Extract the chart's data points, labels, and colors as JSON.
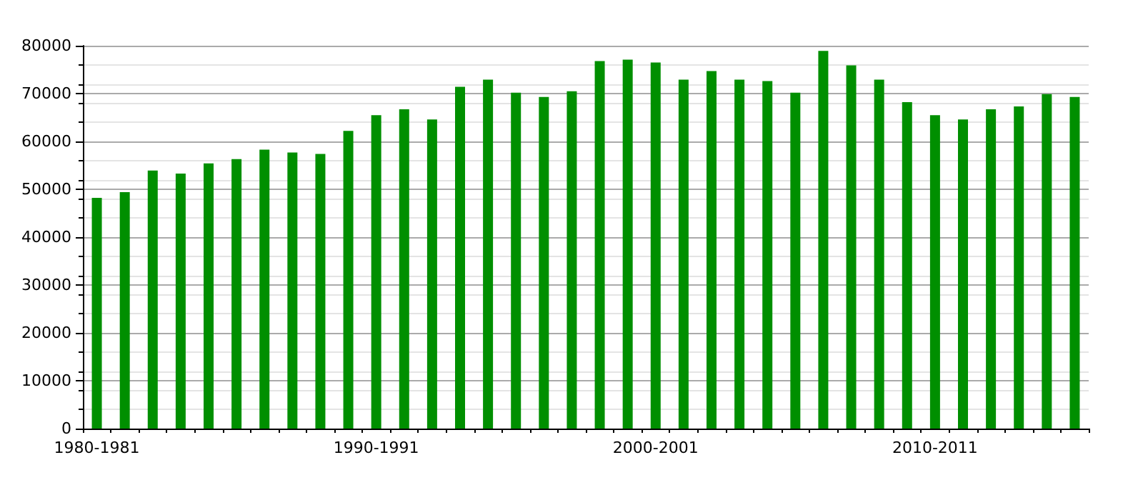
{
  "chart_data": {
    "type": "bar",
    "categories": [
      "1980-1981",
      null,
      null,
      null,
      null,
      null,
      null,
      null,
      null,
      null,
      "1990-1991",
      null,
      null,
      null,
      null,
      null,
      null,
      null,
      null,
      null,
      "2000-2001",
      null,
      null,
      null,
      null,
      null,
      null,
      null,
      null,
      null,
      "2010-2011",
      null,
      null,
      null,
      null,
      null
    ],
    "values": [
      48200,
      49400,
      53900,
      53300,
      55400,
      56300,
      58300,
      57700,
      57400,
      62200,
      65500,
      66700,
      64600,
      71400,
      72900,
      70200,
      69300,
      70500,
      76800,
      77100,
      76500,
      72900,
      74700,
      72900,
      72600,
      70200,
      78900,
      75900,
      72900,
      68200,
      65500,
      64600,
      66700,
      67300,
      69900,
      69300
    ],
    "color": "#008f00",
    "ylim": [
      0,
      80000
    ],
    "yticks": [
      0,
      10000,
      20000,
      30000,
      40000,
      50000,
      60000,
      70000,
      80000
    ],
    "grid": "y"
  }
}
